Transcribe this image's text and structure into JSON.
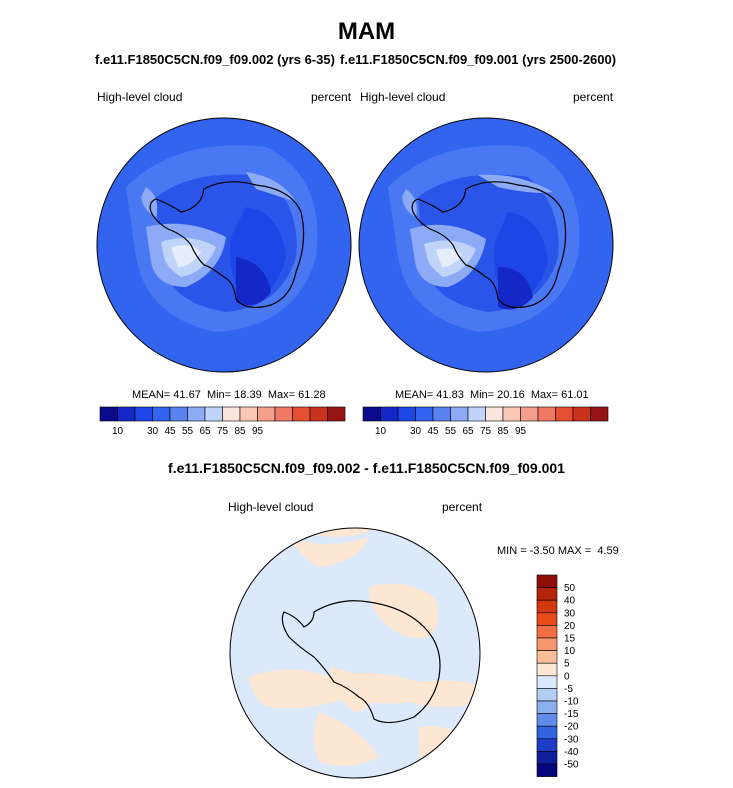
{
  "title": "MAM",
  "panels": [
    {
      "run_title": "f.e11.F1850C5CN.f09_f09.002 (yrs 6-35)",
      "variable": "High-level cloud",
      "units": "percent",
      "stats": {
        "mean_label": "MEAN=",
        "mean": "41.67",
        "min_label": "Min=",
        "min": "18.39",
        "max_label": "Max=",
        "max": "61.28"
      }
    },
    {
      "run_title": "f.e11.F1850C5CN.f09_f09.001 (yrs 2500-2600)",
      "variable": "High-level cloud",
      "units": "percent",
      "stats": {
        "mean_label": "MEAN=",
        "mean": "41.83",
        "min_label": "Min=",
        "min": "20.16",
        "max_label": "Max=",
        "max": "61.01"
      }
    }
  ],
  "colorbar": {
    "labels": [
      "10",
      "30",
      "45",
      "55",
      "65",
      "75",
      "85",
      "95"
    ],
    "colors": [
      "#0a0a8c",
      "#1428c8",
      "#1e46e6",
      "#3264f0",
      "#5a82f0",
      "#8caaf5",
      "#c0d4fa",
      "#fae6dc",
      "#fac8b4",
      "#f5a08c",
      "#f07864",
      "#e65032",
      "#c8321e",
      "#961414"
    ]
  },
  "diff": {
    "title": "f.e11.F1850C5CN.f09_f09.002 - f.e11.F1850C5CN.f09_f09.001",
    "variable": "High-level cloud",
    "units": "percent",
    "stats": {
      "min_label": "MIN =",
      "min": "-3.50",
      "max_label": "MAX =",
      "max": "4.59"
    },
    "colorbar_labels": [
      "50",
      "40",
      "30",
      "20",
      "15",
      "10",
      "5",
      "0",
      "-5",
      "-10",
      "-15",
      "-20",
      "-30",
      "-40",
      "-50"
    ],
    "colorbar_colors": [
      "#8c0f0a",
      "#b4230a",
      "#d2370f",
      "#e64b19",
      "#f06e41",
      "#f5966e",
      "#fabe9b",
      "#fde6d2",
      "#dce9fa",
      "#b4cdf5",
      "#8caff0",
      "#5f8ceb",
      "#3264e1",
      "#1e3cc8",
      "#0f1e9b",
      "#05057d"
    ]
  }
}
